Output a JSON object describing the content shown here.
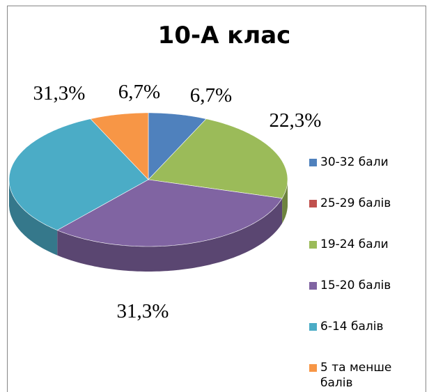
{
  "chart_data": {
    "type": "pie",
    "title": "10-А клас",
    "categories": [
      "30-32 бали",
      "25-29 балів",
      "19-24 бали",
      "15-20 балів",
      "6-14 балів",
      "5 та менше балів"
    ],
    "values": [
      6.7,
      0,
      22.3,
      31.3,
      31.3,
      6.7
    ],
    "value_labels": [
      "6,7%",
      null,
      "22,3%",
      "31,3%",
      "31,3%",
      "6,7%"
    ],
    "colors": [
      "#4f81bd",
      "#c0504d",
      "#9bbb59",
      "#8064a2",
      "#4bacc6",
      "#f79646"
    ],
    "legend": "right"
  }
}
